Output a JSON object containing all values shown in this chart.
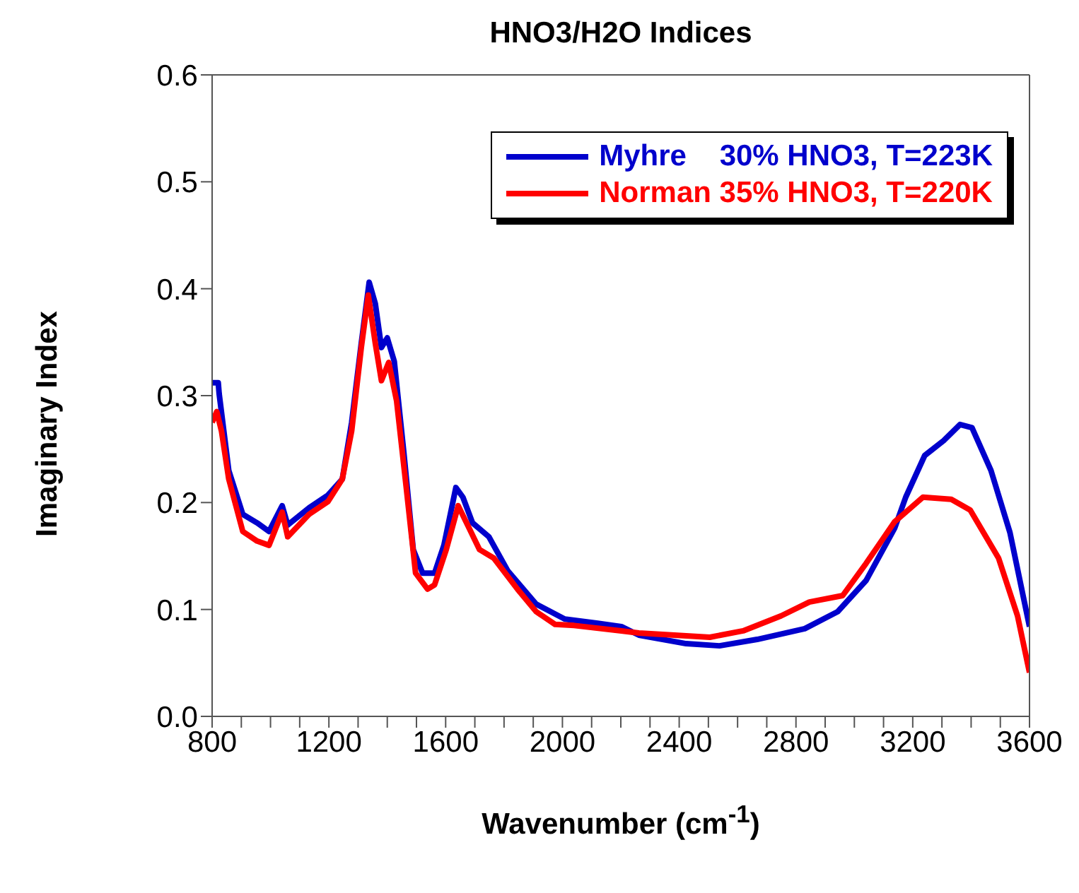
{
  "chart_data": {
    "type": "line",
    "title": "HNO3/H2O Indices",
    "xlabel": "Wavenumber (cm$^{-1}$)",
    "ylabel": "Imaginary Index",
    "xlim": [
      800,
      3600
    ],
    "ylim": [
      0,
      0.6
    ],
    "xticks": [
      800,
      {
        "value": 900,
        "label": null
      },
      {
        "value": 1000,
        "label": null
      },
      {
        "value": 1100,
        "label": null
      },
      1200,
      {
        "value": 1300,
        "label": null
      },
      {
        "value": 1400,
        "label": null
      },
      {
        "value": 1500,
        "label": null
      },
      1600,
      {
        "value": 1700,
        "label": null
      },
      {
        "value": 1800,
        "label": null
      },
      {
        "value": 1900,
        "label": null
      },
      2000,
      {
        "value": 2100,
        "label": null
      },
      {
        "value": 2200,
        "label": null
      },
      {
        "value": 2300,
        "label": null
      },
      2400,
      {
        "value": 2500,
        "label": null
      },
      {
        "value": 2600,
        "label": null
      },
      {
        "value": 2700,
        "label": null
      },
      2800,
      {
        "value": 2900,
        "label": null
      },
      {
        "value": 3000,
        "label": null
      },
      {
        "value": 3100,
        "label": null
      },
      3200,
      {
        "value": 3300,
        "label": null
      },
      {
        "value": 3400,
        "label": null
      },
      {
        "value": 3500,
        "label": null
      },
      3600
    ],
    "yticks": [
      {
        "value": 0,
        "label": "0.0"
      },
      0.1,
      0.2,
      0.3,
      0.4,
      0.5,
      0.6
    ],
    "legend": "top right",
    "marker": "none",
    "line_style": "solid",
    "series": [
      {
        "name": "Myhre    30% HNO3, T=223K",
        "color": "#0000cc",
        "x": [
          800,
          821,
          824,
          857,
          905,
          954,
          995,
          1040,
          1059,
          1132,
          1197,
          1246,
          1278,
          1311,
          1338,
          1359,
          1380,
          1400,
          1424,
          1457,
          1489,
          1521,
          1562,
          1594,
          1635,
          1659,
          1692,
          1748,
          1813,
          1910,
          2008,
          2121,
          2202,
          2262,
          2424,
          2538,
          2667,
          2830,
          2943,
          3040,
          3138,
          3176,
          3241,
          3306,
          3362,
          3403,
          3468,
          3533,
          3600
        ],
        "values": [
          0.312,
          0.312,
          0.302,
          0.23,
          0.189,
          0.181,
          0.173,
          0.197,
          0.179,
          0.195,
          0.207,
          0.222,
          0.275,
          0.349,
          0.406,
          0.386,
          0.345,
          0.354,
          0.332,
          0.246,
          0.156,
          0.134,
          0.134,
          0.16,
          0.214,
          0.205,
          0.181,
          0.168,
          0.136,
          0.105,
          0.091,
          0.087,
          0.084,
          0.076,
          0.068,
          0.066,
          0.072,
          0.082,
          0.098,
          0.127,
          0.176,
          0.205,
          0.244,
          0.258,
          0.273,
          0.27,
          0.23,
          0.172,
          0.084
        ]
      },
      {
        "name": "Norman 35% HNO3, T=220K",
        "color": "#ff0000",
        "x": [
          800,
          816,
          832,
          857,
          905,
          954,
          995,
          1040,
          1059,
          1132,
          1197,
          1246,
          1278,
          1311,
          1335,
          1359,
          1380,
          1405,
          1432,
          1465,
          1497,
          1538,
          1562,
          1602,
          1643,
          1675,
          1716,
          1765,
          1846,
          1910,
          1975,
          2040,
          2202,
          2262,
          2505,
          2619,
          2749,
          2846,
          2960,
          3040,
          3138,
          3235,
          3332,
          3397,
          3494,
          3559,
          3600
        ],
        "values": [
          0.275,
          0.285,
          0.267,
          0.222,
          0.173,
          0.164,
          0.16,
          0.191,
          0.168,
          0.189,
          0.201,
          0.222,
          0.267,
          0.345,
          0.394,
          0.349,
          0.314,
          0.331,
          0.295,
          0.214,
          0.134,
          0.119,
          0.123,
          0.156,
          0.197,
          0.179,
          0.156,
          0.148,
          0.119,
          0.098,
          0.086,
          0.085,
          0.08,
          0.078,
          0.074,
          0.08,
          0.094,
          0.107,
          0.113,
          0.143,
          0.182,
          0.205,
          0.203,
          0.193,
          0.148,
          0.094,
          0.041
        ]
      }
    ]
  }
}
